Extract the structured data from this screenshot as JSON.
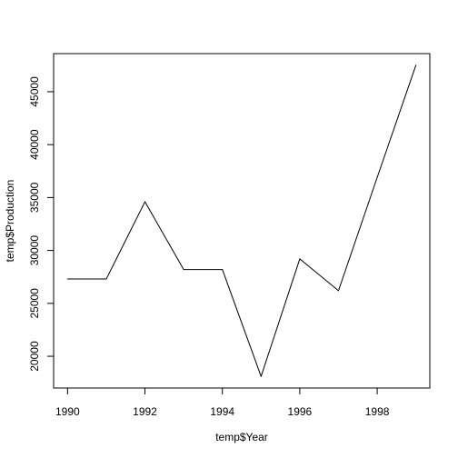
{
  "chart_data": {
    "type": "line",
    "title": "",
    "xlabel": "temp$Year",
    "ylabel": "temp$Production",
    "x": [
      1990,
      1991,
      1992,
      1993,
      1994,
      1995,
      1996,
      1997,
      1998,
      1999
    ],
    "series": [
      {
        "values": [
          27300,
          27300,
          34600,
          28200,
          28200,
          18100,
          29200,
          26200,
          36900,
          47500
        ]
      }
    ],
    "xlim": [
      1989.64,
      1999.36
    ],
    "ylim": [
      17000,
      48600
    ],
    "x_ticks": [
      1990,
      1992,
      1994,
      1996,
      1998
    ],
    "x_tick_labels": [
      "1990",
      "1992",
      "1994",
      "1996",
      "1998"
    ],
    "y_ticks": [
      20000,
      25000,
      30000,
      35000,
      40000,
      45000
    ],
    "y_tick_labels": [
      "20000",
      "25000",
      "30000",
      "35000",
      "40000",
      "45000"
    ],
    "line_color": "#000000",
    "grid": false,
    "legend": "none"
  }
}
